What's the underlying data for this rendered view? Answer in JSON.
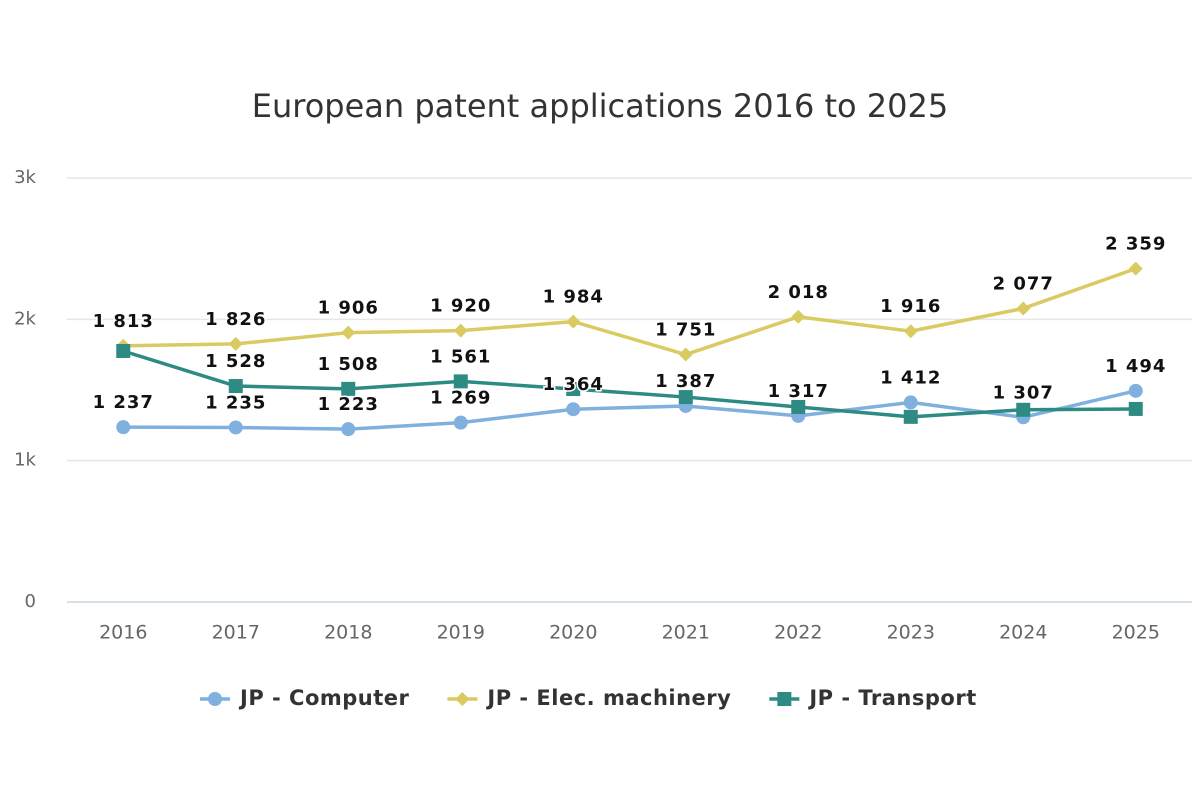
{
  "chart_data": {
    "type": "line",
    "title": "European patent applications 2016 to 2025",
    "categories": [
      "2016",
      "2017",
      "2018",
      "2019",
      "2020",
      "2021",
      "2022",
      "2023",
      "2024",
      "2025"
    ],
    "ylim": [
      0,
      3000
    ],
    "yticks": [
      0,
      {
        "value": 1000,
        "label": "1k"
      },
      {
        "value": 2000,
        "label": "2k"
      },
      {
        "value": 3000,
        "label": "3k"
      }
    ],
    "grid": true,
    "series": [
      {
        "name": "JP - Computer",
        "color": "#7fb0de",
        "marker": "circle",
        "values": [
          1237,
          1235,
          1223,
          1269,
          1364,
          1387,
          1317,
          1412,
          1307,
          1494
        ],
        "value_labels": [
          "1 237",
          "1 235",
          "1 223",
          "1 269",
          "1 364",
          "1 387",
          "1 317",
          "1 412",
          "1 307",
          "1 494"
        ]
      },
      {
        "name": "JP - Elec. machinery",
        "color": "#d9cb62",
        "marker": "diamond",
        "values": [
          1813,
          1826,
          1906,
          1920,
          1984,
          1751,
          2018,
          1916,
          2077,
          2359
        ],
        "value_labels": [
          "1 813",
          "1 826",
          "1 906",
          "1 920",
          "1 984",
          "1 751",
          "2 018",
          "1 916",
          "2 077",
          "2 359"
        ]
      },
      {
        "name": "JP - Transport",
        "color": "#2e8b84",
        "marker": "square",
        "values": [
          1776,
          1528,
          1508,
          1561,
          1507,
          1450,
          1380,
          1310,
          1360,
          1366
        ],
        "value_labels": [
          null,
          "1 528",
          "1 508",
          "1 561",
          null,
          null,
          null,
          null,
          null,
          null
        ]
      }
    ]
  }
}
